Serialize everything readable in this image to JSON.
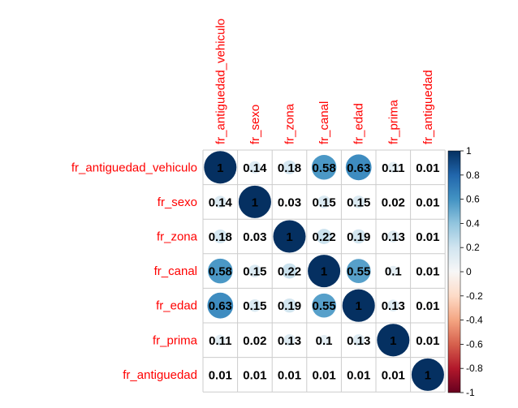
{
  "chart_data": {
    "type": "heatmap",
    "variables": [
      "fr_antiguedad_vehiculo",
      "fr_sexo",
      "fr_zona",
      "fr_canal",
      "fr_edad",
      "fr_prima",
      "fr_antiguedad"
    ],
    "matrix": [
      [
        1,
        0.14,
        0.18,
        0.58,
        0.63,
        0.11,
        0.01
      ],
      [
        0.14,
        1,
        0.03,
        0.15,
        0.15,
        0.02,
        0.01
      ],
      [
        0.18,
        0.03,
        1,
        0.22,
        0.19,
        0.13,
        0.01
      ],
      [
        0.58,
        0.15,
        0.22,
        1,
        0.55,
        0.1,
        0.01
      ],
      [
        0.63,
        0.15,
        0.19,
        0.55,
        1,
        0.13,
        0.01
      ],
      [
        0.11,
        0.02,
        0.13,
        0.1,
        0.13,
        1,
        0.01
      ],
      [
        0.01,
        0.01,
        0.01,
        0.01,
        0.01,
        0.01,
        1
      ]
    ],
    "labels": [
      [
        "1",
        "0.14",
        "0.18",
        "0.58",
        "0.63",
        "0.11",
        "0.01"
      ],
      [
        "0.14",
        "1",
        "0.03",
        "0.15",
        "0.15",
        "0.02",
        "0.01"
      ],
      [
        "0.18",
        "0.03",
        "1",
        "0.22",
        "0.19",
        "0.13",
        "0.01"
      ],
      [
        "0.58",
        "0.15",
        "0.22",
        "1",
        "0.55",
        "0.1",
        "0.01"
      ],
      [
        "0.63",
        "0.15",
        "0.19",
        "0.55",
        "1",
        "0.13",
        "0.01"
      ],
      [
        "0.11",
        "0.02",
        "0.13",
        "0.1",
        "0.13",
        "1",
        "0.01"
      ],
      [
        "0.01",
        "0.01",
        "0.01",
        "0.01",
        "0.01",
        "0.01",
        "1"
      ]
    ],
    "colorbar": {
      "range": [
        -1,
        1
      ],
      "ticks": [
        "1",
        "0.8",
        "0.6",
        "0.4",
        "0.2",
        "0",
        "-0.2",
        "-0.4",
        "-0.6",
        "-0.8",
        "-1"
      ],
      "tick_values": [
        1,
        0.8,
        0.6,
        0.4,
        0.2,
        0,
        -0.2,
        -0.4,
        -0.6,
        -0.8,
        -1
      ]
    },
    "colors": {
      "positive_max": "#053061",
      "negative_max": "#67001f",
      "neutral": "#f7f7f7",
      "label": "#ff0000",
      "grid": "#cccccc"
    }
  }
}
